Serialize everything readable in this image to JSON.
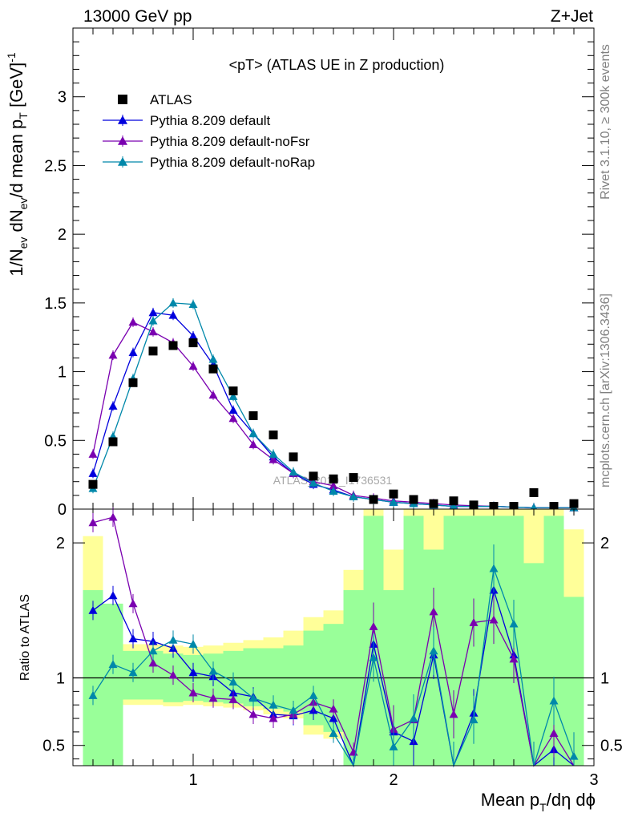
{
  "header": {
    "left": "13000 GeV pp",
    "right": "Z+Jet",
    "side_top": "Rivet 3.1.10, ≥ 300k events",
    "side_bottom": "mcplots.cern.ch [arXiv:1306.3436]",
    "watermark": "ATLAS_2019_I1736531"
  },
  "chart_data": [
    {
      "type": "scatter",
      "title": "<pT> (ATLAS UE in Z production)",
      "ylabel": "1/N_ev dN_ev/d mean p_T [GeV]^-1",
      "xlim": [
        0.4,
        3.0
      ],
      "ylim": [
        0,
        3.5
      ],
      "yticks": [
        0,
        0.5,
        1,
        1.5,
        2,
        2.5,
        3
      ],
      "ytick_labels": [
        "0",
        "0.5",
        "1",
        "1.5",
        "2",
        "2.5",
        "3"
      ],
      "legend_position": "top-left",
      "x": [
        0.5,
        0.6,
        0.7,
        0.8,
        0.9,
        1.0,
        1.1,
        1.2,
        1.3,
        1.4,
        1.5,
        1.6,
        1.7,
        1.8,
        1.9,
        2.0,
        2.1,
        2.2,
        2.3,
        2.4,
        2.5,
        2.6,
        2.7,
        2.8,
        2.9
      ],
      "series": [
        {
          "name": "ATLAS",
          "color": "#000000",
          "marker": "square",
          "values": [
            0.18,
            0.49,
            0.92,
            1.15,
            1.19,
            1.21,
            1.02,
            0.86,
            0.68,
            0.54,
            0.38,
            0.24,
            0.22,
            0.23,
            0.07,
            0.11,
            0.07,
            0.04,
            0.06,
            0.03,
            0.02,
            0.02,
            0.12,
            0.02,
            0.04
          ]
        },
        {
          "name": "Pythia 8.209 default",
          "color": "#0000dd",
          "marker": "triangle",
          "values": [
            0.26,
            0.75,
            1.14,
            1.43,
            1.41,
            1.26,
            1.05,
            0.72,
            0.55,
            0.38,
            0.26,
            0.18,
            0.14,
            0.09,
            0.07,
            0.05,
            0.04,
            0.03,
            0.02,
            0.02,
            0.02,
            0.015,
            0.01,
            0.01,
            0.01
          ]
        },
        {
          "name": "Pythia 8.209 default-noFsr",
          "color": "#7a00b0",
          "marker": "triangle",
          "values": [
            0.4,
            1.12,
            1.36,
            1.29,
            1.21,
            1.04,
            0.83,
            0.66,
            0.47,
            0.36,
            0.26,
            0.2,
            0.17,
            0.1,
            0.08,
            0.06,
            0.05,
            0.04,
            0.03,
            0.025,
            0.02,
            0.015,
            0.01,
            0.01,
            0.01
          ]
        },
        {
          "name": "Pythia 8.209 default-noRap",
          "color": "#0088aa",
          "marker": "triangle",
          "values": [
            0.15,
            0.53,
            0.95,
            1.37,
            1.5,
            1.49,
            1.09,
            0.82,
            0.55,
            0.4,
            0.27,
            0.19,
            0.13,
            0.09,
            0.07,
            0.05,
            0.04,
            0.03,
            0.02,
            0.02,
            0.02,
            0.015,
            0.01,
            0.01,
            0.01
          ]
        }
      ]
    },
    {
      "type": "line",
      "ylabel": "Ratio to ATLAS",
      "xlabel": "Mean p_T/dη dϕ",
      "xlim": [
        0.4,
        3.0
      ],
      "ylim": [
        0.35,
        2.25
      ],
      "xticks": [
        1,
        2,
        3
      ],
      "xtick_labels": [
        "1",
        "2",
        "3"
      ],
      "yticks": [
        0.5,
        1,
        2
      ],
      "ytick_labels": [
        "0.5",
        "1",
        "2"
      ],
      "x": [
        0.5,
        0.6,
        0.7,
        0.8,
        0.9,
        1.0,
        1.1,
        1.2,
        1.3,
        1.4,
        1.5,
        1.6,
        1.7,
        1.8,
        1.9,
        2.0,
        2.1,
        2.2,
        2.3,
        2.4,
        2.5,
        2.6,
        2.7,
        2.8,
        2.9
      ],
      "bands": {
        "green": [
          [
            0.35,
            1.65
          ],
          [
            0.35,
            1.55
          ],
          [
            0.84,
            1.2
          ],
          [
            0.84,
            1.2
          ],
          [
            0.82,
            1.18
          ],
          [
            0.83,
            1.17
          ],
          [
            0.82,
            1.18
          ],
          [
            0.81,
            1.2
          ],
          [
            0.79,
            1.22
          ],
          [
            0.77,
            1.22
          ],
          [
            0.75,
            1.24
          ],
          [
            0.65,
            1.35
          ],
          [
            0.6,
            1.4
          ],
          [
            0.35,
            1.65
          ],
          [
            0.35,
            2.2
          ],
          [
            0.35,
            1.65
          ],
          [
            0.35,
            2.2
          ],
          [
            0.35,
            1.95
          ],
          [
            0.35,
            2.2
          ],
          [
            0.35,
            2.2
          ],
          [
            0.35,
            2.2
          ],
          [
            0.35,
            2.2
          ],
          [
            0.35,
            1.85
          ],
          [
            0.35,
            2.2
          ],
          [
            0.35,
            1.6
          ]
        ],
        "yellow": [
          [
            0.35,
            2.05
          ],
          [
            0.55,
            1.45
          ],
          [
            0.8,
            1.25
          ],
          [
            0.8,
            1.25
          ],
          [
            0.79,
            1.24
          ],
          [
            0.8,
            1.23
          ],
          [
            0.79,
            1.24
          ],
          [
            0.78,
            1.26
          ],
          [
            0.76,
            1.28
          ],
          [
            0.73,
            1.3
          ],
          [
            0.7,
            1.35
          ],
          [
            0.58,
            1.45
          ],
          [
            0.55,
            1.5
          ],
          [
            0.35,
            1.8
          ],
          [
            0.35,
            2.25
          ],
          [
            0.35,
            1.95
          ],
          [
            0.35,
            2.25
          ],
          [
            0.35,
            2.25
          ],
          [
            0.35,
            2.25
          ],
          [
            0.35,
            2.25
          ],
          [
            0.35,
            2.25
          ],
          [
            0.35,
            2.25
          ],
          [
            0.35,
            2.25
          ],
          [
            0.35,
            2.25
          ],
          [
            0.35,
            2.1
          ]
        ]
      },
      "series": [
        {
          "name": "Pythia 8.209 default",
          "color": "#0000dd",
          "values": [
            1.5,
            1.61,
            1.29,
            1.27,
            1.22,
            1.04,
            1.01,
            0.89,
            0.86,
            0.73,
            0.72,
            0.76,
            0.7,
            0.35,
            1.25,
            0.6,
            0.53,
            1.17,
            0.35,
            0.74,
            1.65,
            1.17,
            0.35,
            0.47,
            0.35
          ]
        },
        {
          "name": "Pythia 8.209 default-noFsr",
          "color": "#7a00b0",
          "values": [
            2.15,
            2.19,
            1.55,
            1.11,
            1.02,
            0.89,
            0.85,
            0.84,
            0.73,
            0.7,
            0.73,
            0.82,
            0.77,
            0.45,
            1.38,
            0.62,
            0.69,
            1.49,
            0.73,
            1.41,
            1.43,
            1.14,
            0.35,
            0.59,
            0.35
          ]
        },
        {
          "name": "Pythia 8.209 default-noRap",
          "color": "#0088aa",
          "values": [
            0.87,
            1.1,
            1.04,
            1.2,
            1.28,
            1.25,
            1.05,
            0.97,
            0.85,
            0.8,
            0.76,
            0.87,
            0.59,
            0.35,
            1.15,
            0.49,
            0.7,
            1.2,
            0.35,
            0.69,
            1.81,
            1.4,
            0.35,
            0.83,
            0.42
          ]
        }
      ]
    }
  ]
}
